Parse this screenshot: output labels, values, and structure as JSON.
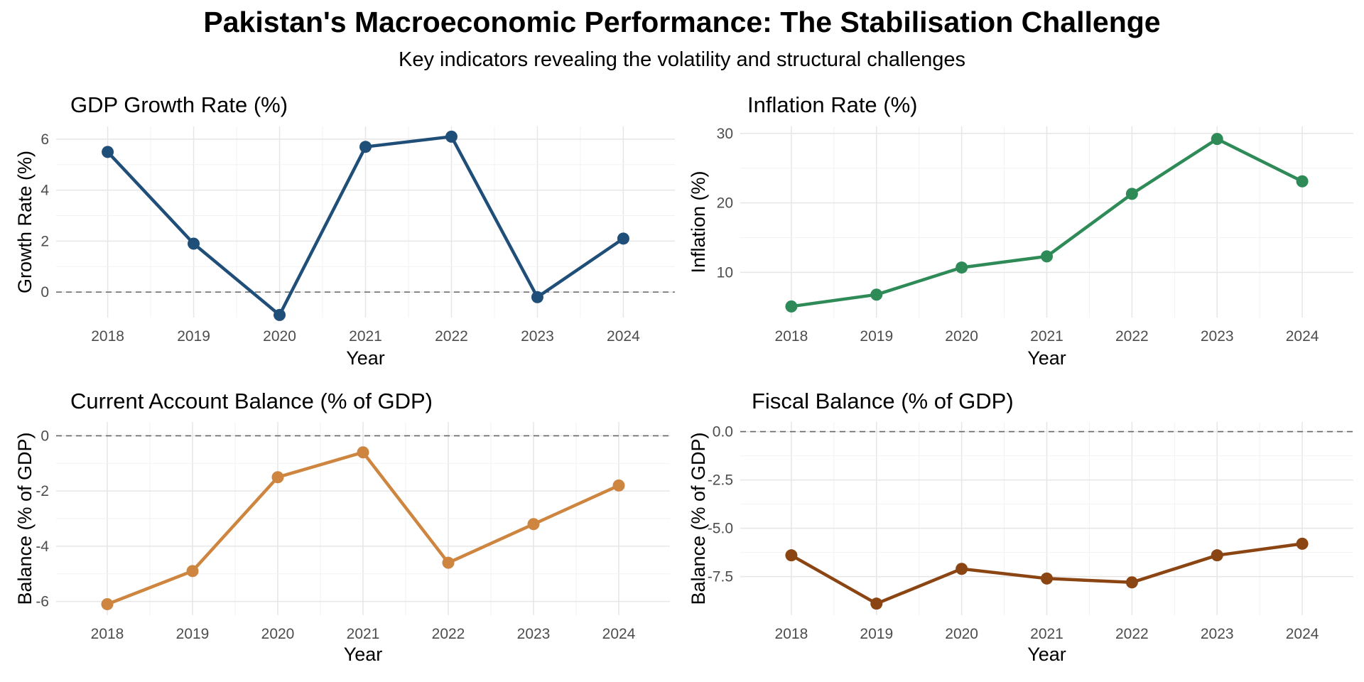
{
  "title": "Pakistan's Macroeconomic Performance: The Stabilisation Challenge",
  "subtitle": "Key indicators revealing the volatility and structural challenges",
  "chart_data": [
    {
      "type": "line",
      "title": "GDP Growth Rate (%)",
      "xlabel": "Year",
      "ylabel": "Growth Rate (%)",
      "color": "#1F4E79",
      "x": [
        "2018",
        "2019",
        "2020",
        "2021",
        "2022",
        "2023",
        "2024"
      ],
      "values": [
        5.5,
        1.9,
        -0.9,
        5.7,
        6.1,
        -0.2,
        2.1
      ],
      "ylim": [
        -1.0,
        6.5
      ],
      "yticks": [
        0,
        2,
        4,
        6
      ],
      "ytick_labels": [
        "0",
        "2",
        "4",
        "6"
      ],
      "reference_line": 0,
      "grid": true
    },
    {
      "type": "line",
      "title": "Inflation Rate (%)",
      "xlabel": "Year",
      "ylabel": "Inflation (%)",
      "color": "#2E8B57",
      "x": [
        "2018",
        "2019",
        "2020",
        "2021",
        "2022",
        "2023",
        "2024"
      ],
      "values": [
        5.1,
        6.8,
        10.7,
        12.3,
        21.3,
        29.2,
        23.1
      ],
      "ylim": [
        3.5,
        31.0
      ],
      "yticks": [
        10,
        20,
        30
      ],
      "ytick_labels": [
        "10",
        "20",
        "30"
      ],
      "grid": true
    },
    {
      "type": "line",
      "title": "Current Account Balance (% of GDP)",
      "xlabel": "Year",
      "ylabel": "Balance (% of GDP)",
      "color": "#CD853F",
      "x": [
        "2018",
        "2019",
        "2020",
        "2021",
        "2022",
        "2023",
        "2024"
      ],
      "values": [
        -6.1,
        -4.9,
        -1.5,
        -0.6,
        -4.6,
        -3.2,
        -1.8
      ],
      "ylim": [
        -6.5,
        0.5
      ],
      "yticks": [
        -6,
        -4,
        -2,
        0
      ],
      "ytick_labels": [
        "-6",
        "-4",
        "-2",
        "0"
      ],
      "reference_line": 0,
      "grid": true
    },
    {
      "type": "line",
      "title": "Fiscal Balance (% of GDP)",
      "xlabel": "Year",
      "ylabel": "Balance (% of GDP)",
      "color": "#8B4513",
      "x": [
        "2018",
        "2019",
        "2020",
        "2021",
        "2022",
        "2023",
        "2024"
      ],
      "values": [
        -6.4,
        -8.9,
        -7.1,
        -7.6,
        -7.8,
        -6.4,
        -5.8
      ],
      "ylim": [
        -9.5,
        0.5
      ],
      "yticks": [
        -7.5,
        -5.0,
        -2.5,
        0.0
      ],
      "ytick_labels": [
        "-7.5",
        "-5.0",
        "-2.5",
        "0.0"
      ],
      "reference_line": 0,
      "grid": true
    }
  ]
}
